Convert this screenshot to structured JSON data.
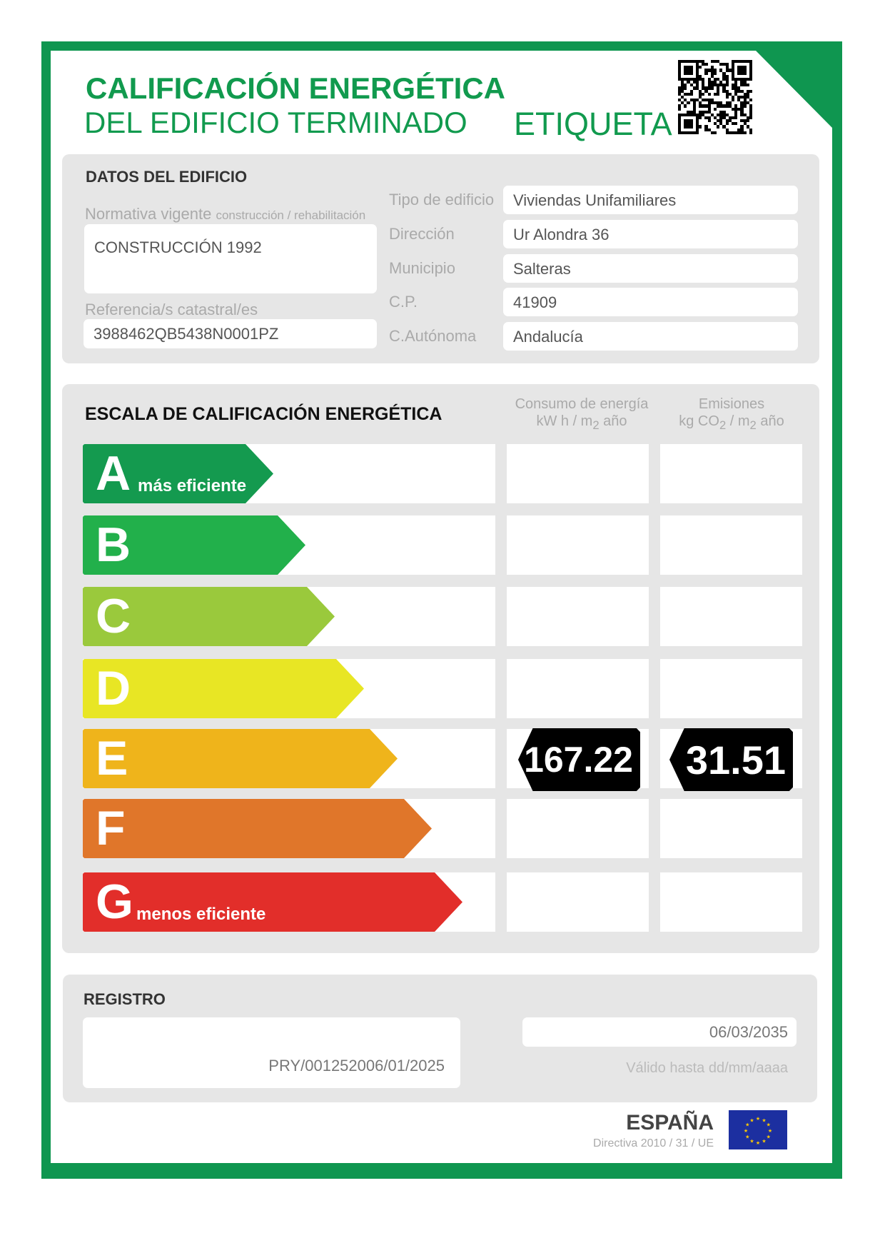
{
  "header": {
    "title_line1": "CALIFICACIÓN ENERGÉTICA",
    "title_line2": "DEL EDIFICIO TERMINADO",
    "label": "ETIQUETA",
    "qr_icon": "qr-code-icon"
  },
  "datos": {
    "heading": "DATOS DEL EDIFICIO",
    "normativa_label": "Normativa vigente",
    "normativa_sublabel": "construcción / rehabilitación",
    "normativa_value": "CONSTRUCCIÓN 1992",
    "referencia_label": "Referencia/s catastral/es",
    "referencia_value": "3988462QB5438N0001PZ",
    "fields": [
      {
        "label": "Tipo de edificio",
        "value": "Viviendas Unifamiliares"
      },
      {
        "label": "Dirección",
        "value": "Ur Alondra 36"
      },
      {
        "label": "Municipio",
        "value": "Salteras"
      },
      {
        "label": "C.P.",
        "value": "41909"
      },
      {
        "label": "C.Autónoma",
        "value": "Andalucía"
      }
    ]
  },
  "escala": {
    "heading": "ESCALA DE CALIFICACIÓN ENERGÉTICA",
    "col1_line1": "Consumo de energía",
    "col1_line2a": "kW h / m",
    "col1_sub": "2",
    "col1_line2b": " año",
    "col2_line1": "Emisiones",
    "col2_line2a": "kg CO",
    "col2_sub1": "2",
    "col2_line2b": " / m",
    "col2_sub2": "2",
    "col2_line2c": " año",
    "grades": [
      {
        "letter": "A",
        "note": "más eficiente",
        "color": "#149a4f"
      },
      {
        "letter": "B",
        "note": "",
        "color": "#22b04b"
      },
      {
        "letter": "C",
        "note": "",
        "color": "#9ac93c"
      },
      {
        "letter": "D",
        "note": "",
        "color": "#e8e624"
      },
      {
        "letter": "E",
        "note": "",
        "color": "#efb41b"
      },
      {
        "letter": "F",
        "note": "",
        "color": "#e0762a"
      },
      {
        "letter": "G",
        "note": "menos eficiente",
        "color": "#e22e2a"
      }
    ],
    "rating": "E",
    "consumo": "167.22",
    "emisiones": "31.51"
  },
  "registro": {
    "heading": "REGISTRO",
    "number": "PRY/001252006/01/2025",
    "valid_date": "06/03/2035",
    "valid_label": "Válido hasta dd/mm/aaaa"
  },
  "footer": {
    "country": "ESPAÑA",
    "directive": "Directiva 2010 / 31 / UE",
    "flag_icon": "eu-flag-icon"
  }
}
